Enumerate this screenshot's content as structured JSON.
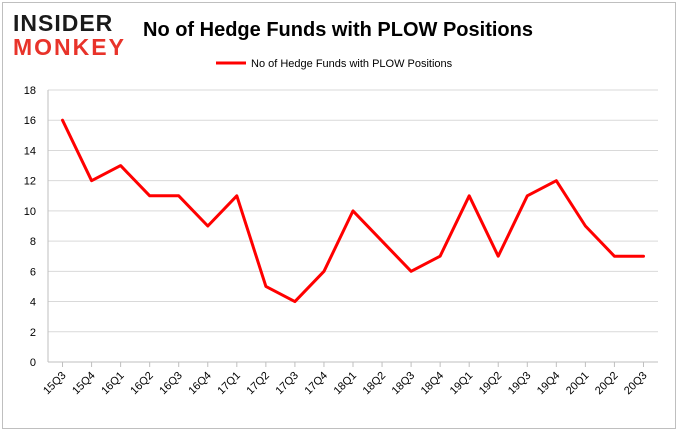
{
  "brand": {
    "line1": "INSIDER",
    "line2": "MONKEY"
  },
  "chart_data": {
    "type": "line",
    "title": "No of Hedge Funds with PLOW Positions",
    "xlabel": "",
    "ylabel": "",
    "categories": [
      "15Q3",
      "15Q4",
      "16Q1",
      "16Q2",
      "16Q3",
      "16Q4",
      "17Q1",
      "17Q2",
      "17Q3",
      "17Q4",
      "18Q1",
      "18Q2",
      "18Q3",
      "18Q4",
      "19Q1",
      "19Q2",
      "19Q3",
      "19Q4",
      "20Q1",
      "20Q2",
      "20Q3"
    ],
    "series": [
      {
        "name": "No of Hedge Funds with PLOW Positions",
        "values": [
          16,
          12,
          13,
          11,
          11,
          9,
          11,
          5,
          4,
          6,
          10,
          8,
          6,
          7,
          11,
          7,
          11,
          12,
          9,
          7,
          7
        ]
      }
    ],
    "ylim": [
      0,
      18
    ],
    "yticks": [
      0,
      2,
      4,
      6,
      8,
      10,
      12,
      14,
      16,
      18
    ],
    "grid": true,
    "legend_position": "top-center",
    "line_color": "#ff0000"
  }
}
